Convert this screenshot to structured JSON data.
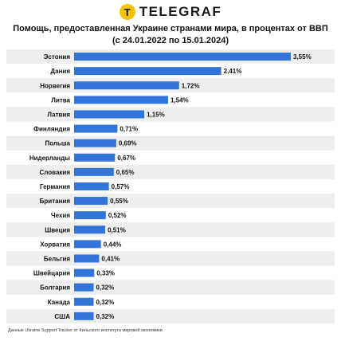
{
  "brand": {
    "icon_letter": "T",
    "name": "TELEGRAF",
    "icon_color": "#f5c400"
  },
  "title_line1": "Помощь, предоставленная Украине странами мира, в процентах от ВВП",
  "title_line2": "(с 24.01.2022 по 15.01.2024)",
  "source": "Данные Ukraine Support Tracker от Кильского института мировой экономики",
  "colors": {
    "bar": "#3374d9",
    "row_alt": "#eeeeee"
  },
  "chart_data": {
    "type": "bar",
    "orientation": "horizontal",
    "title": "Помощь, предоставленная Украине странами мира, в процентах от ВВП (с 24.01.2022 по 15.01.2024)",
    "xlabel": "",
    "ylabel": "",
    "unit": "%",
    "grid": false,
    "categories": [
      "Эстония",
      "Дания",
      "Норвегия",
      "Литва",
      "Латвия",
      "Финляндия",
      "Польша",
      "Нидерланды",
      "Словакия",
      "Германия",
      "Британия",
      "Чехия",
      "Швеция",
      "Хорватия",
      "Бельгия",
      "Швейцария",
      "Болгария",
      "Канада",
      "США"
    ],
    "values": [
      3.55,
      2.41,
      1.72,
      1.54,
      1.15,
      0.71,
      0.69,
      0.67,
      0.65,
      0.57,
      0.55,
      0.52,
      0.51,
      0.44,
      0.41,
      0.33,
      0.32,
      0.32,
      0.32
    ],
    "value_labels": [
      "3,55%",
      "2,41%",
      "1,72%",
      "1,54%",
      "1,15%",
      "0,71%",
      "0,69%",
      "0,67%",
      "0,65%",
      "0,57%",
      "0,55%",
      "0,52%",
      "0,51%",
      "0,44%",
      "0,41%",
      "0,33%",
      "0,32%",
      "0,32%",
      "0,32%"
    ],
    "xlim": [
      0,
      3.55
    ]
  }
}
